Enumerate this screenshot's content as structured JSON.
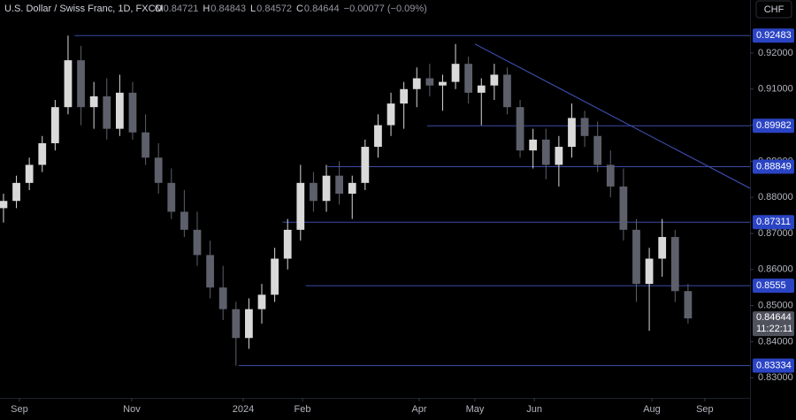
{
  "chart_data": {
    "type": "candlestick",
    "title": "U.S. Dollar / Swiss Franc, 1D, FXCM",
    "ohlc_legend": [
      {
        "label": "O",
        "value": "0.84721"
      },
      {
        "label": "H",
        "value": "0.84843"
      },
      {
        "label": "L",
        "value": "0.84572"
      },
      {
        "label": "C",
        "value": "0.84644"
      }
    ],
    "change": "−0.00077 (−0.09%)",
    "currency": "CHF",
    "categories": [
      null,
      null,
      null,
      null,
      null,
      null,
      null,
      null,
      null,
      null,
      null,
      null,
      null,
      null,
      null,
      null,
      null,
      null,
      null,
      null,
      null,
      null,
      null,
      null,
      null,
      null,
      null,
      null,
      null,
      null,
      null,
      null,
      null,
      null,
      null,
      null,
      null,
      null,
      null,
      null,
      null,
      null,
      null,
      null,
      null,
      null,
      null,
      null,
      null,
      null,
      null,
      null,
      null,
      null
    ],
    "open": [
      0.877,
      0.879,
      0.884,
      0.889,
      0.895,
      0.905,
      0.918,
      0.905,
      0.908,
      0.899,
      0.909,
      0.898,
      0.891,
      0.884,
      0.876,
      0.871,
      0.864,
      0.855,
      0.849,
      0.841,
      0.849,
      0.853,
      0.863,
      0.871,
      0.884,
      0.879,
      0.886,
      0.881,
      0.884,
      0.894,
      0.9,
      0.906,
      0.91,
      0.913,
      0.911,
      0.912,
      0.917,
      0.909,
      0.911,
      0.914,
      0.905,
      0.893,
      0.896,
      0.889,
      0.894,
      0.902,
      0.897,
      0.889,
      0.883,
      0.871,
      0.856,
      0.863,
      0.869,
      0.854
    ],
    "high": [
      0.881,
      0.886,
      0.891,
      0.897,
      0.907,
      0.92483,
      0.922,
      0.912,
      0.913,
      0.914,
      0.912,
      0.903,
      0.895,
      0.888,
      0.882,
      0.876,
      0.868,
      0.861,
      0.851,
      0.852,
      0.856,
      0.866,
      0.874,
      0.889,
      0.887,
      0.889,
      0.89,
      0.886,
      0.896,
      0.903,
      0.909,
      0.912,
      0.916,
      0.917,
      0.914,
      0.9225,
      0.919,
      0.913,
      0.917,
      0.916,
      0.907,
      0.899,
      0.899,
      0.897,
      0.906,
      0.904,
      0.901,
      0.893,
      0.888,
      0.874,
      0.866,
      0.874,
      0.871,
      0.856
    ],
    "low": [
      0.873,
      0.877,
      0.882,
      0.887,
      0.893,
      0.903,
      0.9,
      0.899,
      0.896,
      0.897,
      0.896,
      0.889,
      0.881,
      0.874,
      0.869,
      0.861,
      0.852,
      0.846,
      0.83334,
      0.838,
      0.845,
      0.851,
      0.86,
      0.868,
      0.876,
      0.876,
      0.878,
      0.874,
      0.882,
      0.891,
      0.897,
      0.899,
      0.905,
      0.908,
      0.904,
      0.91,
      0.906,
      0.9,
      0.907,
      0.903,
      0.891,
      0.888,
      0.885,
      0.883,
      0.891,
      0.894,
      0.887,
      0.88,
      0.868,
      0.851,
      0.843,
      0.858,
      0.851,
      0.845
    ],
    "close": [
      0.879,
      0.884,
      0.889,
      0.895,
      0.905,
      0.918,
      0.905,
      0.908,
      0.899,
      0.909,
      0.898,
      0.891,
      0.884,
      0.876,
      0.871,
      0.864,
      0.855,
      0.849,
      0.841,
      0.849,
      0.853,
      0.863,
      0.871,
      0.884,
      0.879,
      0.886,
      0.881,
      0.884,
      0.894,
      0.9,
      0.906,
      0.91,
      0.913,
      0.911,
      0.912,
      0.917,
      0.909,
      0.911,
      0.914,
      0.905,
      0.893,
      0.896,
      0.889,
      0.894,
      0.902,
      0.897,
      0.889,
      0.883,
      0.871,
      0.856,
      0.863,
      0.869,
      0.854,
      0.84644
    ],
    "colors": {
      "up": "#d9d9d9",
      "down": "#5d606b",
      "line": "#3a4aa6",
      "level_label": "#2b44c4",
      "price_label": "#50535e"
    },
    "xlim": [
      -0.27,
      57.8
    ],
    "xticks": [
      {
        "value": 1.23,
        "label": "Sep"
      },
      {
        "value": 9.93,
        "label": "Nov"
      },
      {
        "value": 18.56,
        "label": "2024"
      },
      {
        "value": 23.15,
        "label": "Feb"
      },
      {
        "value": 32.19,
        "label": "Apr"
      },
      {
        "value": 36.5,
        "label": "May"
      },
      {
        "value": 41.1,
        "label": "Jun"
      },
      {
        "value": 50.2,
        "label": "Aug"
      },
      {
        "value": 54.3,
        "label": "Sep"
      }
    ],
    "ylim": [
      0.8244,
      0.9347
    ],
    "yticks": [
      {
        "value": 0.83,
        "label": "0.83000"
      },
      {
        "value": 0.84,
        "label": "0.84000"
      },
      {
        "value": 0.85,
        "label": "0.85000"
      },
      {
        "value": 0.86,
        "label": "0.86000"
      },
      {
        "value": 0.87,
        "label": "0.87000"
      },
      {
        "value": 0.88,
        "label": "0.88000"
      },
      {
        "value": 0.89,
        "label": "0.89000"
      },
      {
        "value": 0.9,
        "label": "0.90000"
      },
      {
        "value": 0.91,
        "label": "0.91000"
      },
      {
        "value": 0.92,
        "label": "0.92000"
      }
    ],
    "levels": [
      {
        "value": 0.92483,
        "x_start": 5.5
      },
      {
        "value": 0.89982,
        "x_start": 32.8
      },
      {
        "value": 0.88849,
        "x_start": 25.1
      },
      {
        "value": 0.87311,
        "x_start": 21.6
      },
      {
        "value": 0.8555,
        "x_start": 23.4
      },
      {
        "value": 0.83334,
        "x_start": 18.2
      }
    ],
    "trendline": {
      "x": [
        36.5,
        57.8
      ],
      "y": [
        0.9225,
        0.8825
      ]
    },
    "last_price": 0.84644,
    "countdown": "11:22:11"
  }
}
